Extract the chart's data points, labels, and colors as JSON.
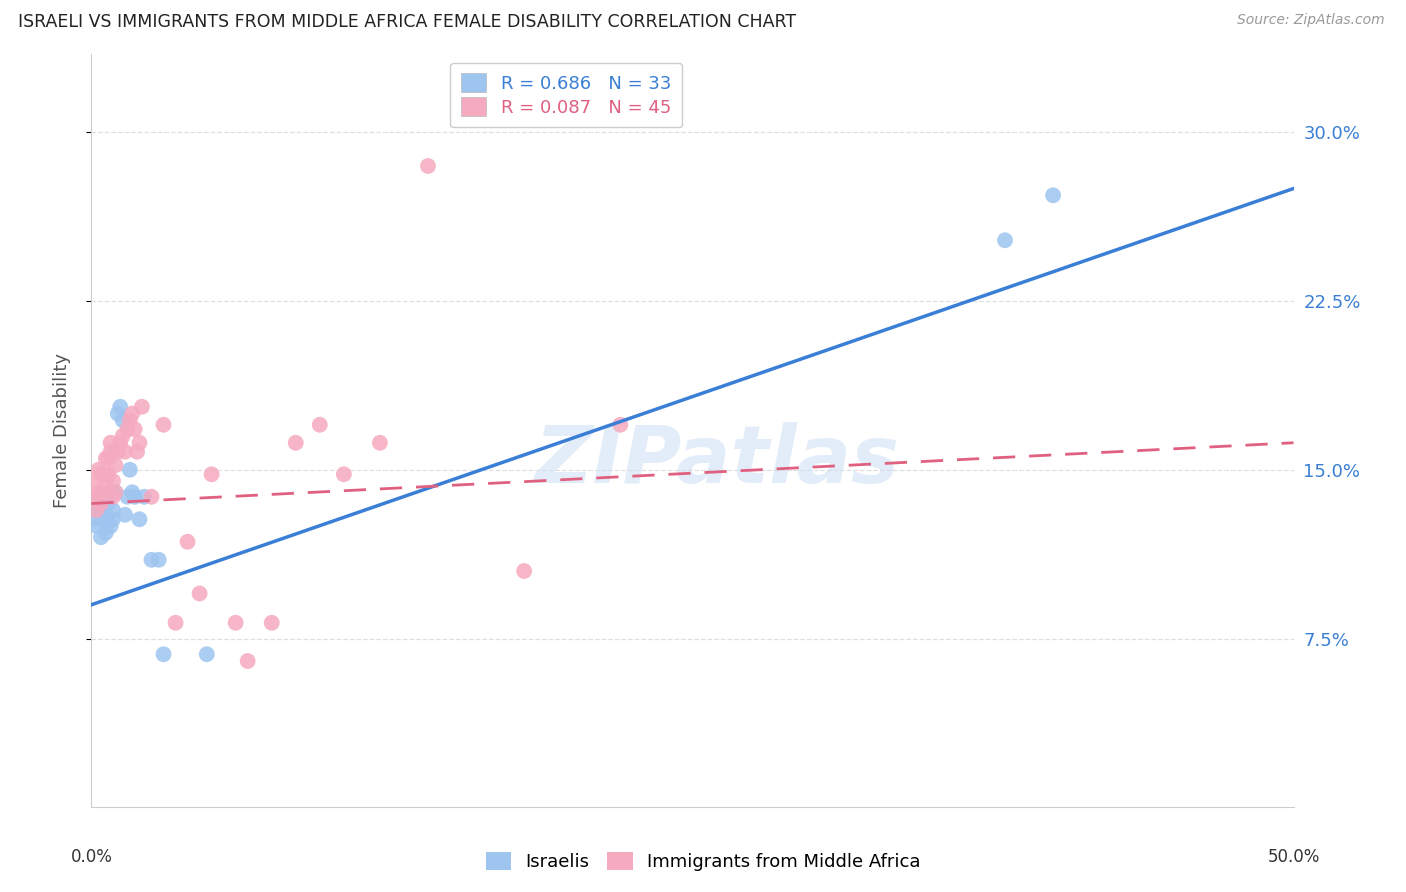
{
  "title": "ISRAELI VS IMMIGRANTS FROM MIDDLE AFRICA FEMALE DISABILITY CORRELATION CHART",
  "source": "Source: ZipAtlas.com",
  "ylabel": "Female Disability",
  "xlim": [
    0.0,
    0.5
  ],
  "ylim": [
    0.0,
    0.335
  ],
  "yticks_right": [
    0.075,
    0.15,
    0.225,
    0.3
  ],
  "yticklabels_right": [
    "7.5%",
    "15.0%",
    "22.5%",
    "30.0%"
  ],
  "legend_item1": "R = 0.686   N = 33",
  "legend_item2": "R = 0.087   N = 45",
  "israelis_color": "#9ec5f0",
  "immigrants_color": "#f5aabf",
  "israeli_line_color": "#3a7fd5",
  "immigrant_line_color": "#e06080",
  "watermark": "ZIPatlas",
  "background_color": "#ffffff",
  "grid_color": "#d8d8d8",
  "israelis_x": [
    0.001,
    0.002,
    0.003,
    0.003,
    0.004,
    0.004,
    0.005,
    0.005,
    0.006,
    0.006,
    0.007,
    0.007,
    0.008,
    0.008,
    0.009,
    0.009,
    0.01,
    0.011,
    0.012,
    0.013,
    0.014,
    0.015,
    0.016,
    0.017,
    0.018,
    0.02,
    0.022,
    0.025,
    0.028,
    0.03,
    0.048,
    0.38,
    0.4
  ],
  "israelis_y": [
    0.128,
    0.125,
    0.132,
    0.138,
    0.13,
    0.12,
    0.135,
    0.128,
    0.13,
    0.122,
    0.135,
    0.127,
    0.14,
    0.125,
    0.132,
    0.128,
    0.14,
    0.175,
    0.178,
    0.172,
    0.13,
    0.138,
    0.15,
    0.14,
    0.138,
    0.128,
    0.138,
    0.11,
    0.11,
    0.068,
    0.068,
    0.252,
    0.272
  ],
  "immigrants_x": [
    0.001,
    0.002,
    0.002,
    0.003,
    0.003,
    0.004,
    0.004,
    0.005,
    0.005,
    0.006,
    0.006,
    0.007,
    0.007,
    0.008,
    0.008,
    0.009,
    0.009,
    0.01,
    0.01,
    0.011,
    0.012,
    0.013,
    0.014,
    0.015,
    0.016,
    0.017,
    0.018,
    0.019,
    0.02,
    0.021,
    0.025,
    0.03,
    0.035,
    0.04,
    0.045,
    0.05,
    0.06,
    0.065,
    0.075,
    0.085,
    0.095,
    0.105,
    0.12,
    0.18,
    0.22
  ],
  "immigrants_y": [
    0.138,
    0.132,
    0.145,
    0.14,
    0.15,
    0.135,
    0.148,
    0.14,
    0.148,
    0.155,
    0.145,
    0.155,
    0.148,
    0.158,
    0.162,
    0.138,
    0.145,
    0.152,
    0.14,
    0.158,
    0.162,
    0.165,
    0.158,
    0.168,
    0.172,
    0.175,
    0.168,
    0.158,
    0.162,
    0.178,
    0.138,
    0.17,
    0.082,
    0.118,
    0.095,
    0.148,
    0.082,
    0.065,
    0.082,
    0.162,
    0.17,
    0.148,
    0.162,
    0.105,
    0.17
  ],
  "immigrants_outlier_x": [
    0.14
  ],
  "immigrants_outlier_y": [
    0.285
  ]
}
